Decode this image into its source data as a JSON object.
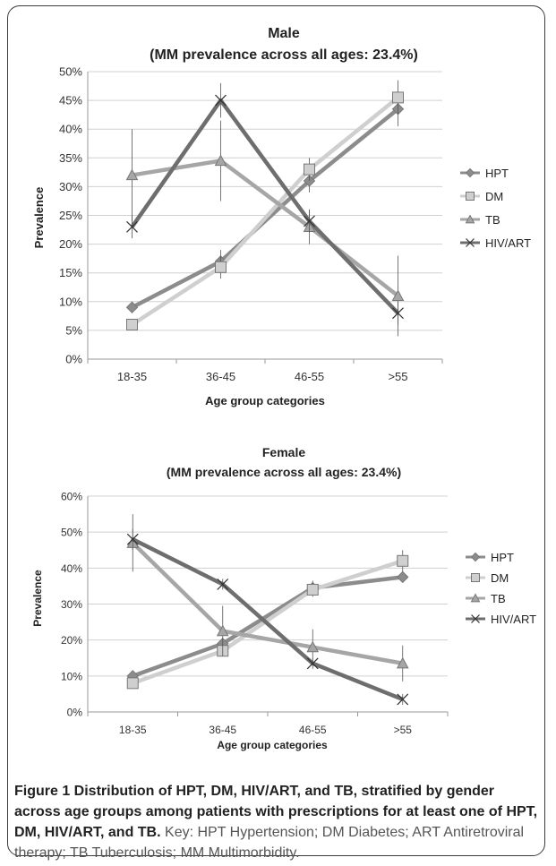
{
  "chart_data": [
    {
      "type": "line",
      "title": "Male",
      "subtitle": "(MM prevalence across all ages: 23.4%)",
      "xlabel": "Age group categories",
      "ylabel": "Prevalence",
      "categories": [
        "18-35",
        "36-45",
        "46-55",
        ">55"
      ],
      "ylim": [
        0,
        50
      ],
      "yticks": [
        "0%",
        "5%",
        "10%",
        "15%",
        "20%",
        "25%",
        "30%",
        "35%",
        "40%",
        "45%",
        "50%"
      ],
      "grid": true,
      "legend_position": "right",
      "series": [
        {
          "name": "HPT",
          "marker": "diamond",
          "color": "#8c8c8c",
          "values": [
            9,
            17,
            31,
            43.5
          ],
          "err": [
            1,
            2,
            2,
            3
          ]
        },
        {
          "name": "DM",
          "marker": "square",
          "color": "#cfcfcf",
          "values": [
            6,
            16,
            33,
            45.5
          ],
          "err": [
            1,
            2,
            2,
            3
          ]
        },
        {
          "name": "TB",
          "marker": "triangle",
          "color": "#a6a6a6",
          "values": [
            32,
            34.5,
            23,
            11
          ],
          "err": [
            8,
            7,
            3,
            7
          ]
        },
        {
          "name": "HIV/ART",
          "marker": "x",
          "color": "#6e6e6e",
          "values": [
            23,
            45,
            24,
            8
          ],
          "err": [
            2,
            3,
            2,
            2
          ]
        }
      ]
    },
    {
      "type": "line",
      "title": "Female",
      "subtitle": "(MM prevalence across all ages: 23.4%)",
      "xlabel": "Age group categories",
      "ylabel": "Prevalence",
      "categories": [
        "18-35",
        "36-45",
        "46-55",
        ">55"
      ],
      "ylim": [
        0,
        60
      ],
      "yticks": [
        "0%",
        "10%",
        "20%",
        "30%",
        "40%",
        "50%",
        "60%"
      ],
      "grid": true,
      "legend_position": "right",
      "series": [
        {
          "name": "HPT",
          "marker": "diamond",
          "color": "#8c8c8c",
          "values": [
            10,
            19,
            34.5,
            37.5
          ],
          "err": [
            1,
            1.5,
            2,
            1.5
          ]
        },
        {
          "name": "DM",
          "marker": "square",
          "color": "#cfcfcf",
          "values": [
            8,
            17,
            34,
            42
          ],
          "err": [
            1,
            1.5,
            2,
            3
          ]
        },
        {
          "name": "TB",
          "marker": "triangle",
          "color": "#a6a6a6",
          "values": [
            47,
            22.5,
            18,
            13.5
          ],
          "err": [
            8,
            7,
            5,
            5
          ]
        },
        {
          "name": "HIV/ART",
          "marker": "x",
          "color": "#6e6e6e",
          "values": [
            48,
            35.5,
            13.5,
            3.5
          ],
          "err": [
            3,
            1.5,
            1.5,
            1.5
          ]
        }
      ]
    }
  ],
  "caption": {
    "bold": "Figure 1 Distribution of HPT, DM, HIV/ART, and TB, stratified by gender across age groups among patients with prescriptions for at least one of HPT, DM, HIV/ART, and TB.",
    "key": "Key: HPT Hypertension; DM Diabetes; ART Antiretroviral therapy; TB Tuberculosis; MM Multimorbidity."
  }
}
